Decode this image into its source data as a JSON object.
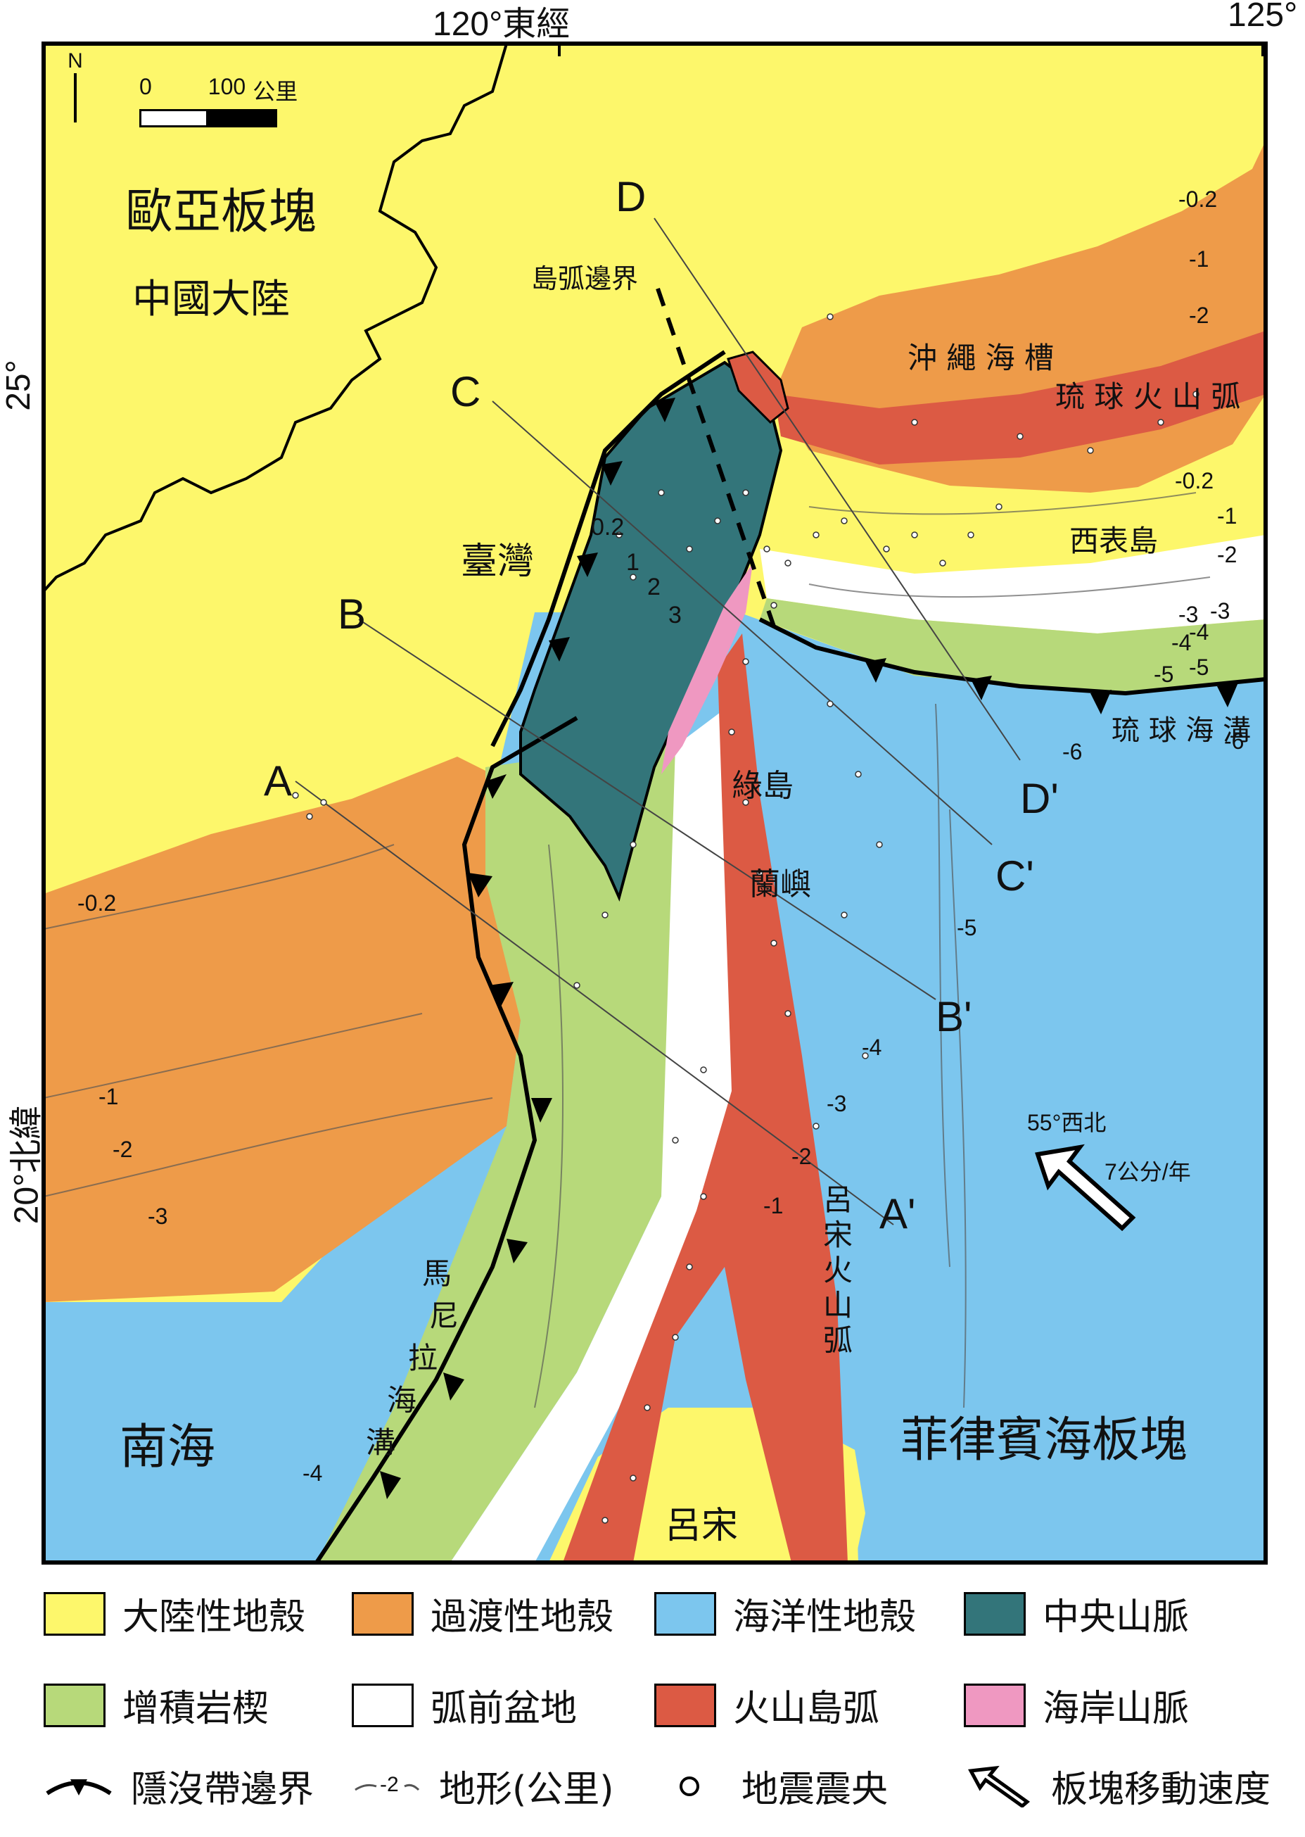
{
  "map": {
    "top_labels": {
      "lon_120": "120°東經",
      "lon_125": "125°"
    },
    "side_labels": {
      "lat_25": "25°",
      "lat_20": "20°北緯"
    },
    "scale_bar": {
      "start": "0",
      "end": "100",
      "unit": "公里"
    },
    "north": "N",
    "regions": {
      "eurasia": "歐亞板塊",
      "mainland": "中國大陸",
      "taiwan": "臺灣",
      "south_sea": "南海",
      "philippine_plate": "菲律賓海板塊",
      "luzon": "呂宋",
      "green_island": "綠島",
      "orchid_island": "蘭嶼",
      "iriomote": "西表島",
      "okinawa_trough": "沖 繩 海 槽",
      "ryukyu_arc": "琉 球 火 山 弧",
      "ryukyu_trench": "琉 球 海 溝",
      "manila_trench": [
        "馬",
        "尼",
        "拉",
        "海",
        "溝"
      ],
      "luzon_arc": [
        "呂",
        "宋",
        "火",
        "山",
        "弧"
      ],
      "arc_boundary": "島弧邊界"
    },
    "section_labels": [
      "A",
      "A'",
      "B",
      "B'",
      "C",
      "C'",
      "D",
      "D'"
    ],
    "contours": [
      "0.2",
      "1",
      "2",
      "3",
      "-0.2",
      "-1",
      "-2",
      "-3",
      "-4",
      "-5",
      "-6",
      "-0.2",
      "-1",
      "-2",
      "-3",
      "-4",
      "-1",
      "-2",
      "-3",
      "-4",
      "-5",
      "-0.2",
      "-1",
      "-2",
      "-3",
      "-4",
      "-5",
      "-6"
    ],
    "motion": {
      "direction": "55°西北",
      "rate": "7公分/年"
    }
  },
  "legend": {
    "row1": [
      {
        "label": "大陸性地殼",
        "color": "#fdf76b"
      },
      {
        "label": "過渡性地殼",
        "color": "#ee9b49"
      },
      {
        "label": "海洋性地殼",
        "color": "#7cc6ee"
      },
      {
        "label": "中央山脈",
        "color": "#33757a"
      }
    ],
    "row2": [
      {
        "label": "增積岩楔",
        "color": "#b7d97a"
      },
      {
        "label": "弧前盆地",
        "color": "#ffffff"
      },
      {
        "label": "火山島弧",
        "color": "#dc5a44"
      },
      {
        "label": "海岸山脈",
        "color": "#ef98c1"
      }
    ],
    "row3": [
      {
        "label": "隱沒帶邊界",
        "icon": "subduction-boundary-icon"
      },
      {
        "label": "地形(公里)",
        "icon": "contour-line-icon",
        "sample": "-2"
      },
      {
        "label": "地震震央",
        "icon": "epicenter-circle-icon"
      },
      {
        "label": "板塊移動速度",
        "icon": "plate-motion-arrow-icon"
      }
    ]
  }
}
